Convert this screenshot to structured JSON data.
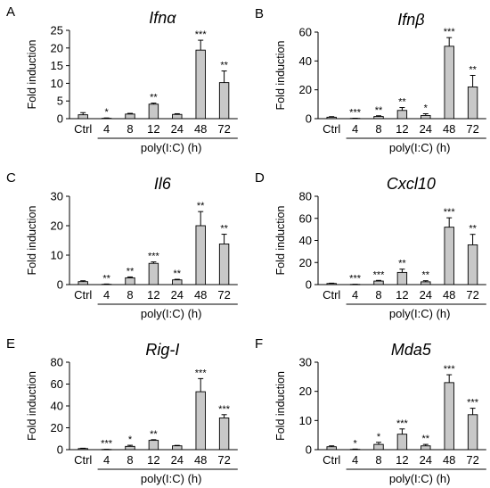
{
  "chart_data": [
    {
      "type": "bar",
      "panel": "A",
      "title": "Ifnα",
      "ylabel": "Fold induction",
      "xgroup_label": "poly(I:C) (h)",
      "categories": [
        "Ctrl",
        "4",
        "8",
        "12",
        "24",
        "48",
        "72"
      ],
      "values": [
        1.1,
        0.1,
        1.3,
        4.1,
        1.2,
        19.4,
        10.2
      ],
      "errors": [
        0.6,
        0.1,
        0.2,
        0.3,
        0.2,
        2.8,
        3.3
      ],
      "significance": [
        "",
        "*",
        "",
        "**",
        "",
        "***",
        "**"
      ],
      "ylim": [
        0,
        25
      ],
      "yticks": [
        0,
        5,
        10,
        15,
        20,
        25
      ],
      "bar_color": "#c8c8c8"
    },
    {
      "type": "bar",
      "panel": "B",
      "title": "Ifnβ",
      "ylabel": "Fold induction",
      "xgroup_label": "poly(I:C) (h)",
      "categories": [
        "Ctrl",
        "4",
        "8",
        "12",
        "24",
        "48",
        "72"
      ],
      "values": [
        1.0,
        0.2,
        1.5,
        5.7,
        2.2,
        50.2,
        22.0
      ],
      "errors": [
        0.4,
        0.1,
        0.5,
        2.0,
        1.2,
        6.0,
        8.0
      ],
      "significance": [
        "",
        "***",
        "**",
        "**",
        "*",
        "***",
        "**"
      ],
      "ylim": [
        0,
        60
      ],
      "yticks": [
        0,
        20,
        40,
        60
      ],
      "bar_color": "#c8c8c8"
    },
    {
      "type": "bar",
      "panel": "C",
      "title": "Il6",
      "ylabel": "Fold induction",
      "xgroup_label": "poly(I:C) (h)",
      "categories": [
        "Ctrl",
        "4",
        "8",
        "12",
        "24",
        "48",
        "72"
      ],
      "values": [
        1.0,
        0.1,
        2.3,
        7.2,
        1.6,
        20.0,
        13.8
      ],
      "errors": [
        0.3,
        0.1,
        0.3,
        0.5,
        0.2,
        4.8,
        3.3
      ],
      "significance": [
        "",
        "**",
        "**",
        "***",
        "**",
        "**",
        "**"
      ],
      "ylim": [
        0,
        30
      ],
      "yticks": [
        0,
        10,
        20,
        30
      ],
      "bar_color": "#c8c8c8"
    },
    {
      "type": "bar",
      "panel": "D",
      "title": "Cxcl10",
      "ylabel": "Fold induction",
      "xgroup_label": "poly(I:C) (h)",
      "categories": [
        "Ctrl",
        "4",
        "8",
        "12",
        "24",
        "48",
        "72"
      ],
      "values": [
        1.0,
        0.2,
        3.2,
        11.0,
        2.5,
        52.0,
        36.0
      ],
      "errors": [
        0.3,
        0.1,
        0.6,
        3.0,
        1.0,
        8.5,
        9.5
      ],
      "significance": [
        "",
        "***",
        "***",
        "**",
        "**",
        "***",
        "**"
      ],
      "ylim": [
        0,
        80
      ],
      "yticks": [
        0,
        20,
        40,
        60,
        80
      ],
      "bar_color": "#c8c8c8"
    },
    {
      "type": "bar",
      "panel": "E",
      "title": "Rig-I",
      "ylabel": "Fold induction",
      "xgroup_label": "poly(I:C) (h)",
      "categories": [
        "Ctrl",
        "4",
        "8",
        "12",
        "24",
        "48",
        "72"
      ],
      "values": [
        1.0,
        0.2,
        3.0,
        8.5,
        3.5,
        53.0,
        29.0
      ],
      "errors": [
        0.3,
        0.1,
        1.0,
        0.6,
        0.4,
        12.0,
        3.0
      ],
      "significance": [
        "",
        "***",
        "*",
        "**",
        "",
        "***",
        "***"
      ],
      "ylim": [
        0,
        80
      ],
      "yticks": [
        0,
        20,
        40,
        60,
        80
      ],
      "bar_color": "#c8c8c8"
    },
    {
      "type": "bar",
      "panel": "F",
      "title": "Mda5",
      "ylabel": "Fold induction",
      "xgroup_label": "poly(I:C) (h)",
      "categories": [
        "Ctrl",
        "4",
        "8",
        "12",
        "24",
        "48",
        "72"
      ],
      "values": [
        1.0,
        0.1,
        1.8,
        5.3,
        1.3,
        23.0,
        12.0
      ],
      "errors": [
        0.3,
        0.1,
        0.7,
        1.8,
        0.5,
        2.7,
        2.2
      ],
      "significance": [
        "",
        "*",
        "*",
        "***",
        "**",
        "***",
        "***"
      ],
      "ylim": [
        0,
        30
      ],
      "yticks": [
        0,
        10,
        20,
        30
      ],
      "bar_color": "#c8c8c8"
    }
  ]
}
